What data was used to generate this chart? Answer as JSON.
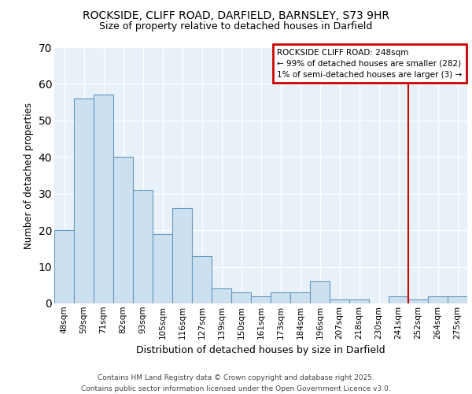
{
  "title1": "ROCKSIDE, CLIFF ROAD, DARFIELD, BARNSLEY, S73 9HR",
  "title2": "Size of property relative to detached houses in Darfield",
  "xlabel": "Distribution of detached houses by size in Darfield",
  "ylabel": "Number of detached properties",
  "categories": [
    "48sqm",
    "59sqm",
    "71sqm",
    "82sqm",
    "93sqm",
    "105sqm",
    "116sqm",
    "127sqm",
    "139sqm",
    "150sqm",
    "161sqm",
    "173sqm",
    "184sqm",
    "196sqm",
    "207sqm",
    "218sqm",
    "230sqm",
    "241sqm",
    "252sqm",
    "264sqm",
    "275sqm"
  ],
  "values": [
    20,
    56,
    57,
    40,
    31,
    19,
    26,
    13,
    4,
    3,
    2,
    3,
    3,
    6,
    1,
    1,
    0,
    2,
    1,
    2,
    2
  ],
  "bar_color": "#cce0f0",
  "bar_edge_color": "#6699bb",
  "vline_color": "#cc0000",
  "vline_idx": 17,
  "annotation_text": "ROCKSIDE CLIFF ROAD: 248sqm\n← 99% of detached houses are smaller (282)\n1% of semi-detached houses are larger (3) →",
  "annotation_box_color": "#cc0000",
  "ylim": [
    0,
    70
  ],
  "yticks": [
    0,
    10,
    20,
    30,
    40,
    50,
    60,
    70
  ],
  "footer": "Contains HM Land Registry data © Crown copyright and database right 2025.\nContains public sector information licensed under the Open Government Licence v3.0.",
  "fig_bg_color": "#ffffff",
  "plot_bg_color": "#e8f0f8",
  "grid_color": "#ffffff",
  "title1_fontsize": 10,
  "title2_fontsize": 9,
  "tick_fontsize": 7.5,
  "ylabel_fontsize": 8.5,
  "xlabel_fontsize": 9,
  "footer_fontsize": 6.5
}
